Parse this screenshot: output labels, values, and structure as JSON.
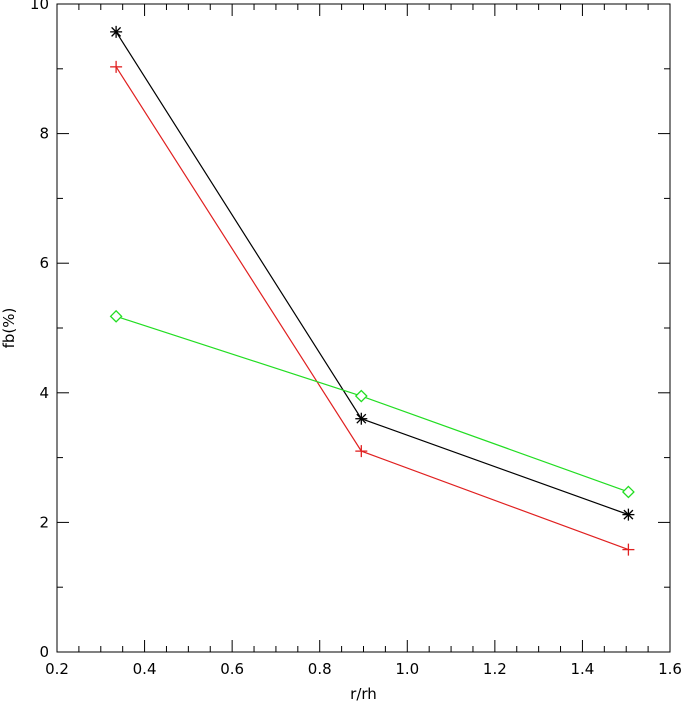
{
  "chart_data": {
    "type": "line",
    "title": "",
    "xlabel": "r/rh",
    "ylabel": "fb(%)",
    "xlim": [
      0.2,
      1.6
    ],
    "ylim": [
      0,
      10
    ],
    "xticks": [
      0.2,
      0.4,
      0.6,
      0.8,
      1.0,
      1.2,
      1.4,
      1.6
    ],
    "xtick_labels": [
      "0.2",
      "0.4",
      "0.6",
      "0.8",
      "1.0",
      "1.2",
      "1.4",
      "1.6"
    ],
    "yticks": [
      0,
      2,
      4,
      6,
      8,
      10
    ],
    "ytick_labels": [
      "0",
      "2",
      "4",
      "6",
      "8",
      "10"
    ],
    "grid": false,
    "x": [
      0.335,
      0.895,
      1.505
    ],
    "series": [
      {
        "marker": "asterisk",
        "color": "#000000",
        "values": [
          9.57,
          3.6,
          2.12
        ]
      },
      {
        "marker": "plus",
        "color": "#e02020",
        "values": [
          9.03,
          3.1,
          1.58
        ]
      },
      {
        "marker": "diamond",
        "color": "#22dd22",
        "values": [
          5.18,
          3.95,
          2.47
        ]
      }
    ]
  }
}
